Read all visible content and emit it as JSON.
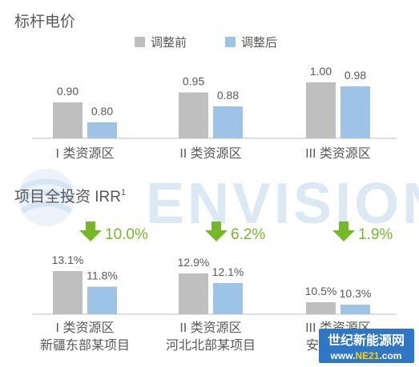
{
  "chart_data": [
    {
      "type": "bar",
      "title": "标杆电价",
      "legend": [
        "调整前",
        "调整后"
      ],
      "categories": [
        "I 类资源区",
        "II 类资源区",
        "III 类资源区"
      ],
      "series": [
        {
          "name": "调整前",
          "values": [
            0.9,
            0.95,
            1.0
          ]
        },
        {
          "name": "调整后",
          "values": [
            0.8,
            0.88,
            0.98
          ]
        }
      ],
      "value_labels": {
        "调整前": [
          "0.90",
          "0.95",
          "1.00"
        ],
        "调整后": [
          "0.80",
          "0.88",
          "0.98"
        ]
      },
      "ylim": [
        0.72,
        1.0
      ],
      "legend_position": "top-center",
      "grid": false
    },
    {
      "type": "bar",
      "title": "项目全投资 IRR",
      "title_superscript": "1",
      "categories": [
        [
          "I 类资源区",
          "新疆东部某项目"
        ],
        [
          "II 类资源区",
          "河北北部某项目"
        ],
        [
          "III 类资源区",
          "安徽某项目"
        ]
      ],
      "series": [
        {
          "name": "调整前",
          "values": [
            13.1,
            12.9,
            10.5
          ]
        },
        {
          "name": "调整后",
          "values": [
            11.8,
            12.1,
            10.3
          ]
        }
      ],
      "value_labels": {
        "调整前": [
          "13.1%",
          "12.9%",
          "10.5%"
        ],
        "调整后": [
          "11.8%",
          "12.1%",
          "10.3%"
        ]
      },
      "changes": [
        "10.0%",
        "6.2%",
        "1.9%"
      ],
      "ylim": [
        9.5,
        13.1
      ],
      "grid": false
    }
  ],
  "colors": {
    "before": "#bfbfbf",
    "after": "#9dc3e6",
    "arrow": "#76b82a",
    "text": "#595959",
    "axis": "#bfbfbf",
    "watermark": "#d6e6f3"
  },
  "watermark": {
    "text": "ENVISION",
    "badge_line1": "世纪新能源网",
    "badge_line2_prefix": "www.",
    "badge_line2_brand": "NE21",
    "badge_line2_suffix": ".com"
  }
}
